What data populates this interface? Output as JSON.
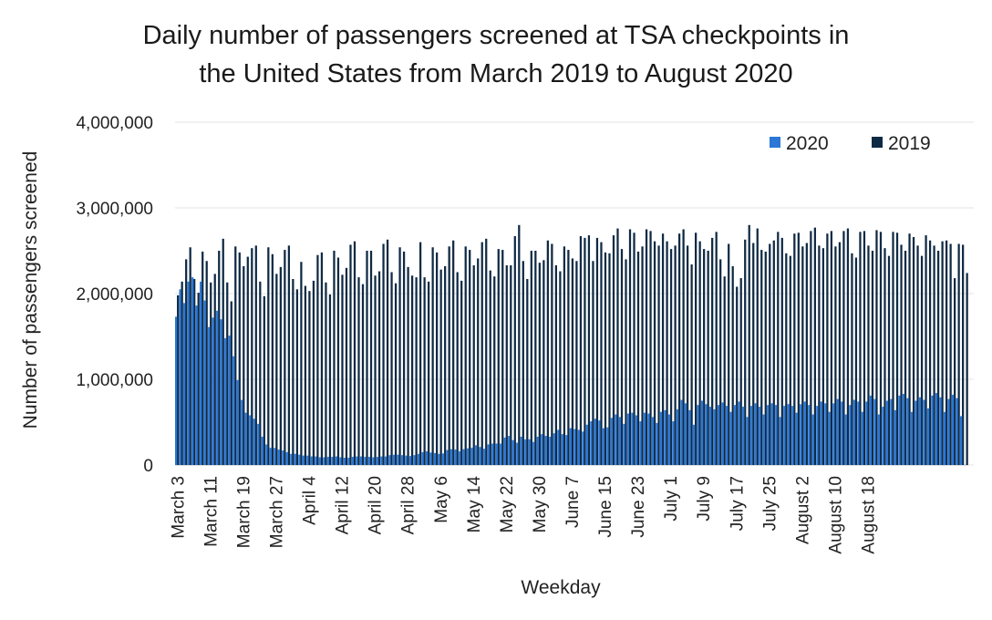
{
  "chart_data": {
    "type": "bar",
    "title": "Daily number of passengers screened at TSA checkpoints in the United States from March 2019 to August 2020",
    "title_lines": [
      "Daily number of passengers screened at TSA checkpoints in",
      "the United States from March 2019 to August 2020"
    ],
    "xlabel": "Weekday",
    "ylabel": "Number of passengers screened",
    "ylim": [
      0,
      4000000
    ],
    "y_ticks": [
      0,
      1000000,
      2000000,
      3000000,
      4000000
    ],
    "y_tick_labels": [
      "0",
      "1,000,000",
      "2,000,000",
      "3,000,000",
      "4,000,000"
    ],
    "x_tick_labels": [
      "March 3",
      "March 11",
      "March 19",
      "March 27",
      "April 4",
      "April 12",
      "April 20",
      "April 28",
      "May 6",
      "May 14",
      "May 22",
      "May 30",
      "June 7",
      "June 15",
      "June 23",
      "July 1",
      "July 9",
      "July 17",
      "July 25",
      "August 2",
      "August 10",
      "August 18"
    ],
    "x_tick_step": 8,
    "grid": true,
    "legend_position": "top-right",
    "colors": {
      "2020": "#2a77d6",
      "2019": "#0f2a44"
    },
    "series": [
      {
        "name": "2019",
        "values": [
          1980000,
          2140000,
          2400000,
          2540000,
          2170000,
          2010000,
          2490000,
          2380000,
          2130000,
          2230000,
          2500000,
          2640000,
          2130000,
          1910000,
          2550000,
          2480000,
          2320000,
          2430000,
          2530000,
          2560000,
          2140000,
          1970000,
          2540000,
          2460000,
          2230000,
          2310000,
          2510000,
          2560000,
          2170000,
          2050000,
          2370000,
          2090000,
          2030000,
          2150000,
          2450000,
          2480000,
          2130000,
          1990000,
          2500000,
          2420000,
          2220000,
          2300000,
          2570000,
          2610000,
          2190000,
          2110000,
          2500000,
          2500000,
          2210000,
          2260000,
          2580000,
          2630000,
          2250000,
          2120000,
          2540000,
          2490000,
          2310000,
          2210000,
          2190000,
          2600000,
          2190000,
          2140000,
          2540000,
          2480000,
          2280000,
          2320000,
          2550000,
          2620000,
          2250000,
          2150000,
          2550000,
          2510000,
          2330000,
          2410000,
          2600000,
          2640000,
          2270000,
          2200000,
          2520000,
          2510000,
          2330000,
          2330000,
          2670000,
          2800000,
          2380000,
          2170000,
          2500000,
          2500000,
          2360000,
          2390000,
          2620000,
          2580000,
          2330000,
          2260000,
          2550000,
          2510000,
          2410000,
          2380000,
          2670000,
          2650000,
          2680000,
          2380000,
          2650000,
          2600000,
          2480000,
          2470000,
          2680000,
          2760000,
          2520000,
          2400000,
          2750000,
          2710000,
          2490000,
          2550000,
          2750000,
          2730000,
          2610000,
          2560000,
          2700000,
          2610000,
          2520000,
          2560000,
          2700000,
          2750000,
          2560000,
          2340000,
          2710000,
          2610000,
          2520000,
          2500000,
          2650000,
          2720000,
          2400000,
          2200000,
          2580000,
          2320000,
          2080000,
          2180000,
          2630000,
          2800000,
          2590000,
          2760000,
          2510000,
          2490000,
          2580000,
          2620000,
          2720000,
          2650000,
          2470000,
          2440000,
          2700000,
          2710000,
          2550000,
          2590000,
          2730000,
          2770000,
          2560000,
          2530000,
          2700000,
          2730000,
          2550000,
          2600000,
          2730000,
          2760000,
          2470000,
          2420000,
          2720000,
          2730000,
          2560000,
          2500000,
          2740000,
          2720000,
          2530000,
          2440000,
          2720000,
          2710000,
          2570000,
          2500000,
          2700000,
          2660000,
          2560000,
          2440000,
          2680000,
          2620000,
          2560000,
          2500000,
          2610000,
          2620000,
          2580000,
          2180000,
          2580000,
          2570000,
          2240000
        ]
      },
      {
        "name": "2020",
        "values": [
          1730000,
          2050000,
          1890000,
          2140000,
          2190000,
          1860000,
          2140000,
          1920000,
          1610000,
          1720000,
          1800000,
          1700000,
          1480000,
          1510000,
          1270000,
          990000,
          760000,
          610000,
          580000,
          540000,
          480000,
          330000,
          240000,
          200000,
          200000,
          180000,
          170000,
          150000,
          130000,
          130000,
          120000,
          110000,
          110000,
          100000,
          100000,
          90000,
          90000,
          95000,
          95000,
          100000,
          90000,
          85000,
          85000,
          95000,
          100000,
          100000,
          95000,
          95000,
          90000,
          95000,
          100000,
          100000,
          115000,
          120000,
          120000,
          115000,
          110000,
          105000,
          115000,
          130000,
          150000,
          160000,
          145000,
          140000,
          130000,
          135000,
          175000,
          185000,
          180000,
          160000,
          185000,
          195000,
          200000,
          230000,
          210000,
          190000,
          240000,
          250000,
          250000,
          250000,
          320000,
          340000,
          290000,
          260000,
          330000,
          300000,
          300000,
          270000,
          330000,
          360000,
          340000,
          330000,
          370000,
          410000,
          360000,
          350000,
          430000,
          420000,
          410000,
          390000,
          470000,
          510000,
          540000,
          520000,
          430000,
          440000,
          550000,
          590000,
          560000,
          480000,
          600000,
          610000,
          580000,
          510000,
          610000,
          600000,
          560000,
          490000,
          620000,
          640000,
          590000,
          510000,
          650000,
          760000,
          720000,
          640000,
          470000,
          700000,
          750000,
          710000,
          680000,
          650000,
          700000,
          730000,
          690000,
          620000,
          700000,
          740000,
          680000,
          560000,
          690000,
          720000,
          680000,
          590000,
          700000,
          720000,
          700000,
          560000,
          690000,
          710000,
          690000,
          610000,
          710000,
          740000,
          700000,
          590000,
          690000,
          740000,
          720000,
          620000,
          720000,
          770000,
          740000,
          590000,
          700000,
          760000,
          740000,
          620000,
          740000,
          810000,
          770000,
          590000,
          680000,
          750000,
          770000,
          640000,
          810000,
          830000,
          780000,
          620000,
          750000,
          790000,
          760000,
          660000,
          810000,
          840000,
          790000,
          620000,
          770000,
          820000,
          780000,
          570000
        ]
      }
    ]
  }
}
